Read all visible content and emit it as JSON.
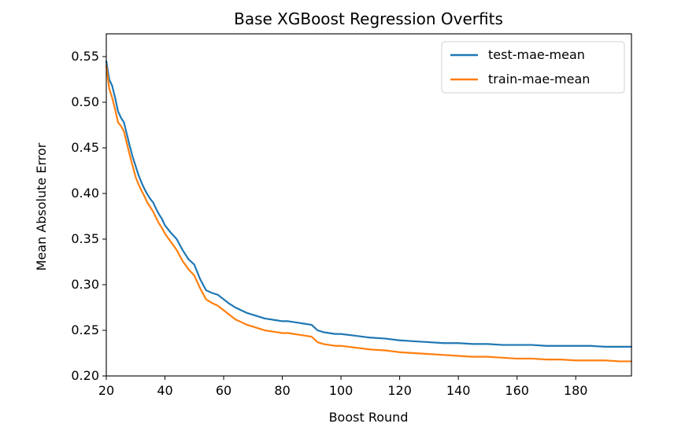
{
  "chart_data": {
    "type": "line",
    "title": "Base XGBoost Regression Overfits",
    "xlabel": "Boost Round",
    "ylabel": "Mean Absolute Error",
    "xlim": [
      20,
      199
    ],
    "ylim": [
      0.2,
      0.575
    ],
    "xticks": [
      20,
      40,
      60,
      80,
      100,
      120,
      140,
      160,
      180
    ],
    "yticks": [
      0.2,
      0.25,
      0.3,
      0.35,
      0.4,
      0.45,
      0.5,
      0.55
    ],
    "xtick_labels": [
      "20",
      "40",
      "60",
      "80",
      "100",
      "120",
      "140",
      "160",
      "180"
    ],
    "ytick_labels": [
      "0.20",
      "0.25",
      "0.30",
      "0.35",
      "0.40",
      "0.45",
      "0.50",
      "0.55"
    ],
    "grid": false,
    "legend_position": "top-right",
    "series": [
      {
        "name": "test-mae-mean",
        "color": "#1f77b4",
        "x": [
          20,
          21,
          22,
          23,
          24,
          25,
          26,
          27,
          28,
          29,
          30,
          31,
          32,
          33,
          34,
          35,
          36,
          37,
          38,
          39,
          40,
          42,
          44,
          46,
          48,
          50,
          52,
          54,
          56,
          58,
          60,
          62,
          64,
          66,
          68,
          70,
          72,
          74,
          76,
          78,
          80,
          82,
          84,
          86,
          88,
          90,
          92,
          94,
          96,
          98,
          100,
          105,
          110,
          115,
          120,
          125,
          130,
          135,
          140,
          145,
          150,
          155,
          160,
          165,
          170,
          175,
          180,
          185,
          190,
          195,
          199
        ],
        "y": [
          0.545,
          0.525,
          0.518,
          0.505,
          0.49,
          0.483,
          0.478,
          0.465,
          0.452,
          0.44,
          0.43,
          0.42,
          0.412,
          0.405,
          0.399,
          0.394,
          0.39,
          0.383,
          0.377,
          0.372,
          0.365,
          0.357,
          0.35,
          0.338,
          0.328,
          0.322,
          0.306,
          0.294,
          0.291,
          0.289,
          0.284,
          0.279,
          0.275,
          0.272,
          0.269,
          0.267,
          0.265,
          0.263,
          0.262,
          0.261,
          0.26,
          0.26,
          0.259,
          0.258,
          0.257,
          0.256,
          0.25,
          0.248,
          0.247,
          0.246,
          0.246,
          0.244,
          0.242,
          0.241,
          0.239,
          0.238,
          0.237,
          0.236,
          0.236,
          0.235,
          0.235,
          0.234,
          0.234,
          0.234,
          0.233,
          0.233,
          0.233,
          0.233,
          0.232,
          0.232,
          0.232
        ]
      },
      {
        "name": "train-mae-mean",
        "color": "#ff7f0e",
        "x": [
          20,
          21,
          22,
          23,
          24,
          25,
          26,
          27,
          28,
          29,
          30,
          31,
          32,
          33,
          34,
          35,
          36,
          37,
          38,
          39,
          40,
          42,
          44,
          46,
          48,
          50,
          52,
          54,
          56,
          58,
          60,
          62,
          64,
          66,
          68,
          70,
          72,
          74,
          76,
          78,
          80,
          82,
          84,
          86,
          88,
          90,
          92,
          94,
          96,
          98,
          100,
          105,
          110,
          115,
          120,
          125,
          130,
          135,
          140,
          145,
          150,
          155,
          160,
          165,
          170,
          175,
          180,
          185,
          190,
          195,
          199
        ],
        "y": [
          0.54,
          0.515,
          0.505,
          0.492,
          0.478,
          0.474,
          0.468,
          0.455,
          0.442,
          0.43,
          0.418,
          0.41,
          0.403,
          0.397,
          0.39,
          0.385,
          0.38,
          0.373,
          0.367,
          0.362,
          0.356,
          0.347,
          0.338,
          0.326,
          0.317,
          0.31,
          0.296,
          0.284,
          0.28,
          0.277,
          0.272,
          0.267,
          0.262,
          0.259,
          0.256,
          0.254,
          0.252,
          0.25,
          0.249,
          0.248,
          0.247,
          0.247,
          0.246,
          0.245,
          0.244,
          0.243,
          0.237,
          0.235,
          0.234,
          0.233,
          0.233,
          0.231,
          0.229,
          0.228,
          0.226,
          0.225,
          0.224,
          0.223,
          0.222,
          0.221,
          0.221,
          0.22,
          0.219,
          0.219,
          0.218,
          0.218,
          0.217,
          0.217,
          0.217,
          0.216,
          0.216
        ]
      }
    ]
  }
}
